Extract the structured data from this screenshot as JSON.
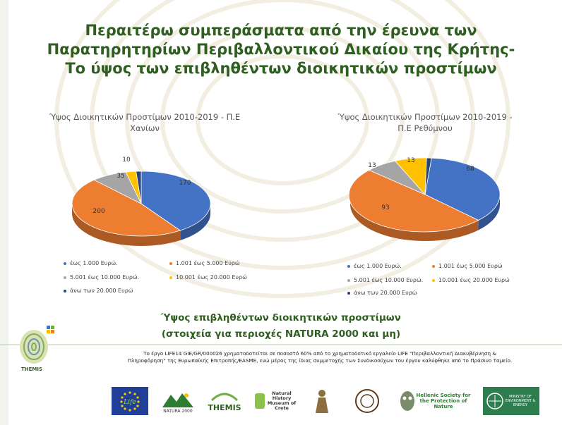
{
  "slide": {
    "title_lines": [
      "Περαιτέρω συμπεράσματα από την έρευνα των",
      "Παρατηρητηρίων Περιβαλλοντικού Δικαίου της Κρήτης-",
      "Το ύψος των επιβληθέντων διοικητικών προστίμων"
    ],
    "subtitle_1": "Ύψος επιβληθέντων διοικητικών προστίμων",
    "subtitle_2": "(στοιχεία για περιοχές NATURA 2000 και μη)",
    "footer_line_1": "Το έργο LIFE14 GIE/GR/000026 χρηματοδοτείται σε ποσοστό 60% από το χρηματοδοτικό εργαλείο LIFE \"Περιβαλλοντική Διακυβέρνηση &",
    "footer_line_2": "Πληροφόρηση\" της Ευρωπαϊκής Επιτροπής/EASME, ενώ μέρος της ίδιας συμμετοχής των Συνδικοούχων του έργου καλύφθηκε από το Πράσινο Ταμείο.",
    "logos": {
      "themis_side": "THEMIS",
      "natura": "NATURA 2000",
      "life_themis": "THEMIS",
      "museum": "Natural History Museum of Crete",
      "hellenic": "Hellenic Society for the Protection of Nature",
      "ministry": "MINISTRY OF ENVIRONMENT & ENERGY"
    }
  },
  "colors": {
    "blue": "#4472c4",
    "orange": "#ed7d31",
    "gray": "#a5a5a5",
    "yellow": "#ffc000",
    "navy": "#264478",
    "title": "#2e5f20"
  },
  "chart_data": [
    {
      "type": "pie",
      "title_line_1": "Ύψος Διοικητικών Προστίμων 2010-2019 - Π.Ε",
      "title_line_2": "Χανίων",
      "categories": [
        "έως 1.000 Ευρώ.",
        "1.001 έως 5.000 Ευρώ",
        "5.001 έως 10.000 Ευρώ.",
        "10.001 έως 20.000 Ευρώ",
        "άνω των 20.000 Ευρώ"
      ],
      "values": [
        170,
        200,
        35,
        10,
        5
      ],
      "labels": [
        "170",
        "200",
        "35",
        "10",
        ""
      ],
      "legend": "bottom"
    },
    {
      "type": "pie",
      "title_line_1": "Ύψος Διοικητικών Προστίμων 2010-2019 -",
      "title_line_2": "Π.Ε Ρεθύμνου",
      "categories": [
        "έως 1.000 Ευρώ.",
        "1.001 έως 5.000 Ευρώ",
        "5.001 έως 10.000 Ευρώ.",
        "10.001 έως 20.000 Ευρώ",
        "άνω των 20.000 Ευρώ"
      ],
      "values": [
        68,
        93,
        13,
        13,
        2
      ],
      "labels": [
        "68",
        "93",
        "13",
        "13",
        ""
      ],
      "legend": "bottom"
    }
  ]
}
